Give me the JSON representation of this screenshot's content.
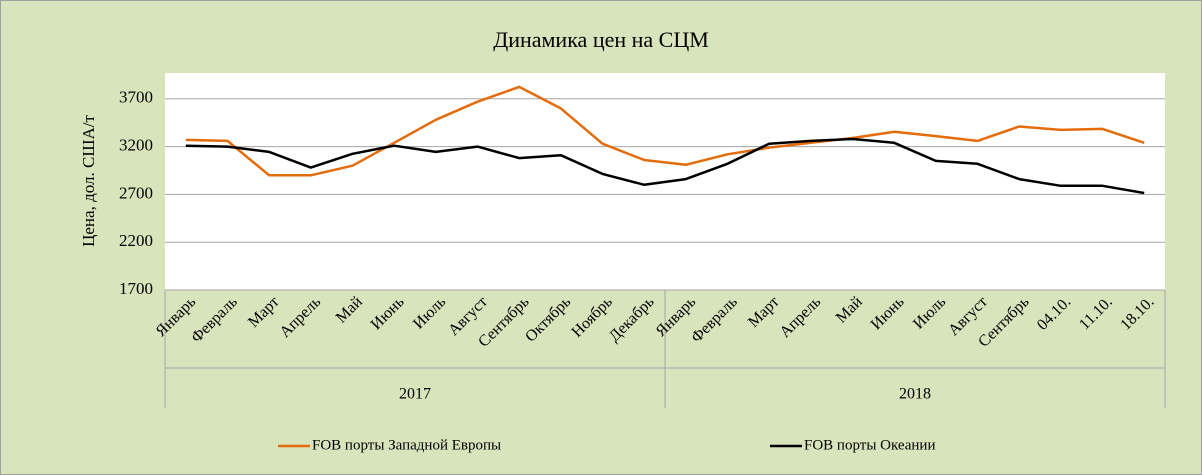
{
  "chart_data": {
    "type": "line",
    "title": "Динамика цен на СЦМ",
    "y_label": "Цена, дол. США/т",
    "category_groups": [
      {
        "label": "2017",
        "categories": [
          "Январь",
          "Февраль",
          "Март",
          "Апрель",
          "Май",
          "Июнь",
          "Июль",
          "Август",
          "Сентябрь",
          "Октябрь",
          "Ноябрь",
          "Декабрь"
        ]
      },
      {
        "label": "2018",
        "categories": [
          "Январь",
          "Февраль",
          "Март",
          "Апрель",
          "Май",
          "Июнь",
          "Июль",
          "Август",
          "Сентябрь",
          "04.10.",
          "11.10.",
          "18.10."
        ]
      }
    ],
    "series": [
      {
        "name": "FOB порты Западной Европы",
        "color": "#e46c0a",
        "values": [
          3270,
          3260,
          2900,
          2900,
          3000,
          3240,
          3480,
          3670,
          3825,
          3600,
          3230,
          3060,
          3010,
          3120,
          3190,
          3240,
          3290,
          3355,
          3310,
          3260,
          3410,
          3375,
          3385,
          3240
        ]
      },
      {
        "name": "FOB порты Океании",
        "color": "#000000",
        "values": [
          3210,
          3200,
          3145,
          2980,
          3125,
          3210,
          3145,
          3200,
          3080,
          3110,
          2915,
          2800,
          2860,
          3020,
          3230,
          3260,
          3280,
          3240,
          3050,
          3020,
          2860,
          2790,
          2790,
          2715
        ]
      }
    ],
    "ylim": [
      1700,
      3970
    ],
    "yticks": [
      1700,
      2200,
      2700,
      3200,
      3700
    ],
    "grid": true,
    "legend": "bottom"
  }
}
